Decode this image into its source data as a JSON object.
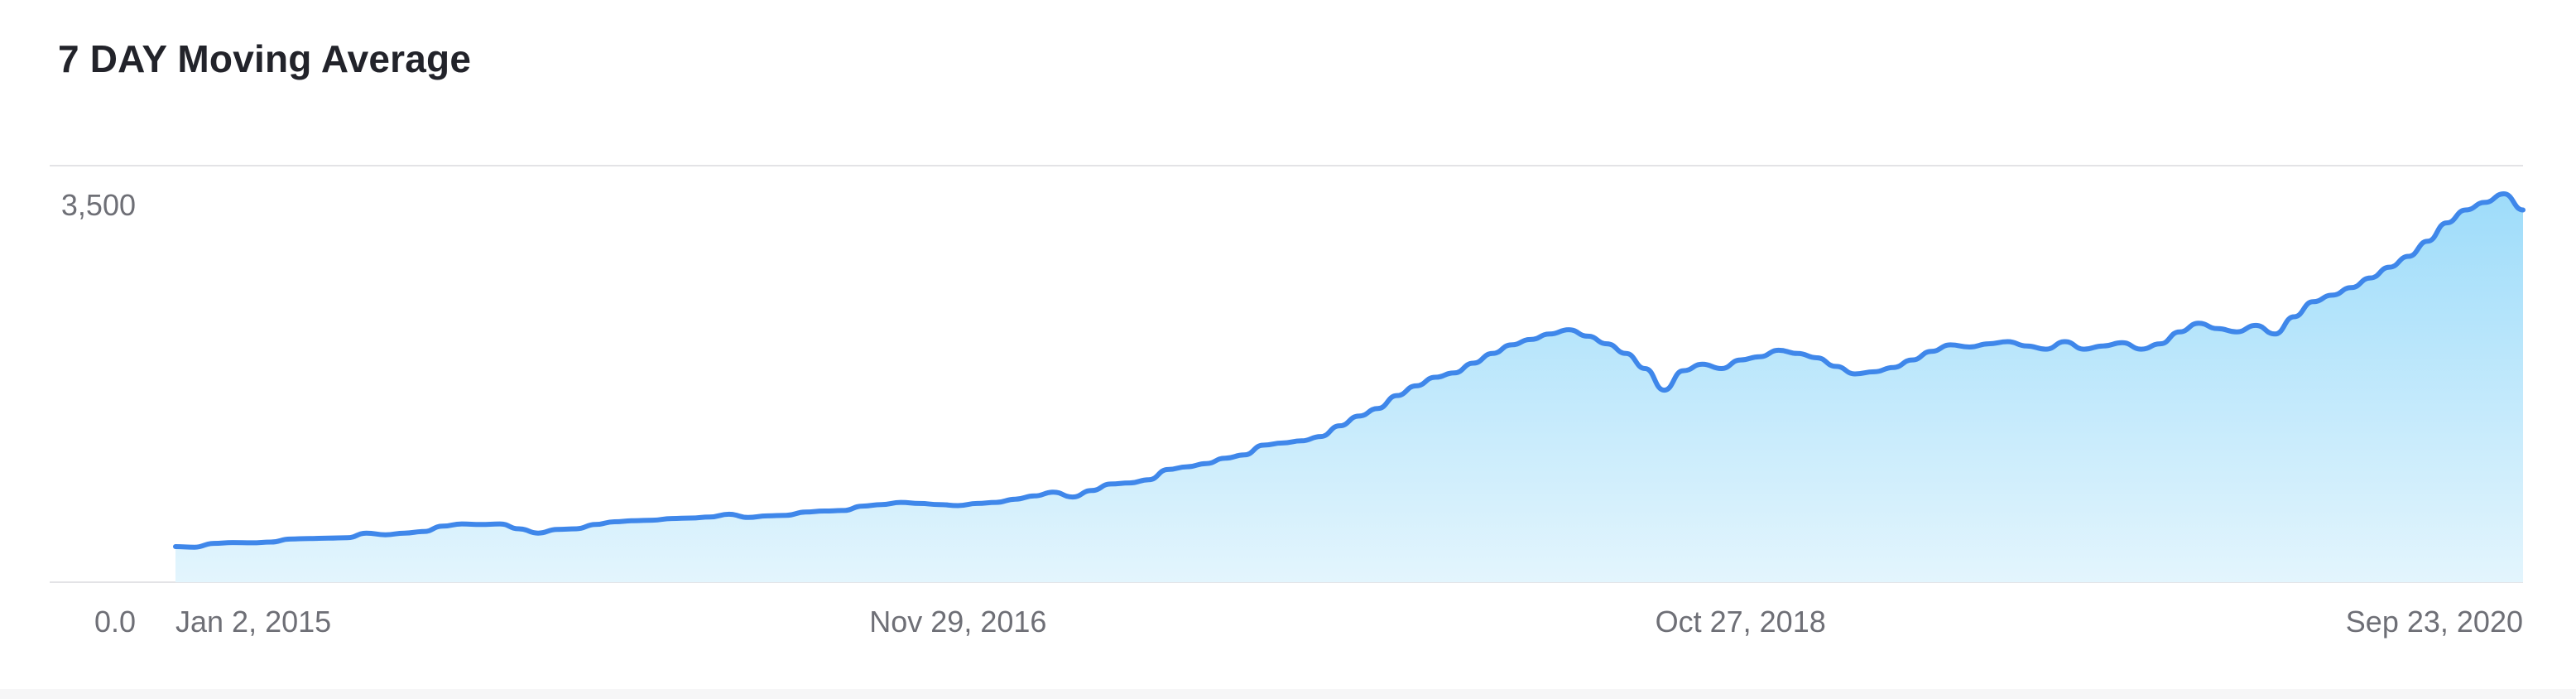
{
  "chart_data": {
    "type": "area",
    "title": "7 DAY Moving Average",
    "xlabel": "",
    "ylabel": "",
    "x_start": "2015-01-02",
    "x_end": "2020-09-23",
    "ylim": [
      0,
      3500
    ],
    "y_ticks": [
      {
        "value": 0,
        "label": "0.0"
      },
      {
        "value": 3500,
        "label": "3,500"
      }
    ],
    "x_ticks": [
      {
        "date": "2015-01-02",
        "label": "Jan 2, 2015"
      },
      {
        "date": "2016-11-29",
        "label": "Nov 29, 2016"
      },
      {
        "date": "2018-10-27",
        "label": "Oct 27, 2018"
      },
      {
        "date": "2020-09-23",
        "label": "Sep 23, 2020"
      }
    ],
    "grid": "horizontal",
    "legend": "none",
    "colors": {
      "line": "#3f87ea",
      "fill_top": "#9edcfa",
      "fill_bottom": "#e3f5fd",
      "grid": "#e3e3e6"
    },
    "series": [
      {
        "x": [
          "2015-01-02",
          "2015-01-19",
          "2015-02-05",
          "2015-02-22",
          "2015-03-11",
          "2015-03-28",
          "2015-04-14",
          "2015-05-01",
          "2015-05-18",
          "2015-06-04",
          "2015-06-21",
          "2015-07-08",
          "2015-07-25",
          "2015-08-11",
          "2015-08-28",
          "2015-09-14",
          "2015-10-01",
          "2015-10-18",
          "2015-11-04",
          "2015-11-21",
          "2015-12-08",
          "2015-12-25",
          "2016-01-11",
          "2016-01-28",
          "2016-02-14",
          "2016-03-02",
          "2016-03-19",
          "2016-04-05",
          "2016-04-22",
          "2016-05-09",
          "2016-05-26",
          "2016-06-12",
          "2016-06-29",
          "2016-07-16",
          "2016-08-02",
          "2016-08-19",
          "2016-09-05",
          "2016-09-22",
          "2016-10-09",
          "2016-10-26",
          "2016-11-12",
          "2016-11-29",
          "2016-12-16",
          "2017-01-02",
          "2017-01-19",
          "2017-02-05",
          "2017-02-22",
          "2017-03-11",
          "2017-03-28",
          "2017-04-14",
          "2017-05-01",
          "2017-05-18",
          "2017-06-04",
          "2017-06-21",
          "2017-07-08",
          "2017-07-25",
          "2017-08-11",
          "2017-08-28",
          "2017-09-14",
          "2017-10-01",
          "2017-10-18",
          "2017-11-04",
          "2017-11-21",
          "2017-12-08",
          "2017-12-25",
          "2018-01-11",
          "2018-01-28",
          "2018-02-14",
          "2018-03-03",
          "2018-03-20",
          "2018-04-06",
          "2018-04-23",
          "2018-05-10",
          "2018-05-27",
          "2018-06-13",
          "2018-06-30",
          "2018-07-17",
          "2018-08-03",
          "2018-08-20",
          "2018-09-06",
          "2018-09-23",
          "2018-10-10",
          "2018-10-27",
          "2018-11-13",
          "2018-11-30",
          "2018-12-17",
          "2019-01-03",
          "2019-01-20",
          "2019-02-06",
          "2019-02-23",
          "2019-03-12",
          "2019-03-29",
          "2019-04-15",
          "2019-05-02",
          "2019-05-19",
          "2019-06-05",
          "2019-06-22",
          "2019-07-09",
          "2019-07-26",
          "2019-08-12",
          "2019-08-29",
          "2019-09-15",
          "2019-10-02",
          "2019-10-19",
          "2019-11-05",
          "2019-11-22",
          "2019-12-09",
          "2019-12-26",
          "2020-01-12",
          "2020-01-29",
          "2020-02-15",
          "2020-03-03",
          "2020-03-20",
          "2020-04-06",
          "2020-04-23",
          "2020-05-10",
          "2020-05-27",
          "2020-06-13",
          "2020-06-30",
          "2020-07-17",
          "2020-08-03",
          "2020-08-20",
          "2020-09-06",
          "2020-09-23"
        ],
        "values": [
          330,
          325,
          360,
          368,
          365,
          372,
          400,
          405,
          408,
          412,
          455,
          440,
          455,
          470,
          520,
          540,
          535,
          540,
          495,
          455,
          490,
          495,
          535,
          560,
          570,
          575,
          590,
          595,
          605,
          630,
          600,
          615,
          620,
          650,
          660,
          665,
          705,
          720,
          740,
          730,
          720,
          710,
          730,
          740,
          770,
          800,
          835,
          790,
          850,
          910,
          920,
          950,
          1045,
          1070,
          1100,
          1150,
          1180,
          1270,
          1290,
          1310,
          1350,
          1450,
          1540,
          1610,
          1730,
          1820,
          1900,
          1940,
          2030,
          2120,
          2200,
          2250,
          2300,
          2340,
          2280,
          2210,
          2120,
          1980,
          1780,
          1960,
          2020,
          1980,
          2060,
          2090,
          2150,
          2120,
          2080,
          2000,
          1930,
          1950,
          1990,
          2060,
          2140,
          2200,
          2180,
          2210,
          2230,
          2190,
          2160,
          2230,
          2160,
          2190,
          2220,
          2160,
          2210,
          2320,
          2400,
          2350,
          2320,
          2380,
          2300,
          2460,
          2600,
          2660,
          2730,
          2820,
          2920,
          3020,
          3160,
          3330,
          3450,
          3520,
          3600,
          3450
        ]
      }
    ]
  }
}
